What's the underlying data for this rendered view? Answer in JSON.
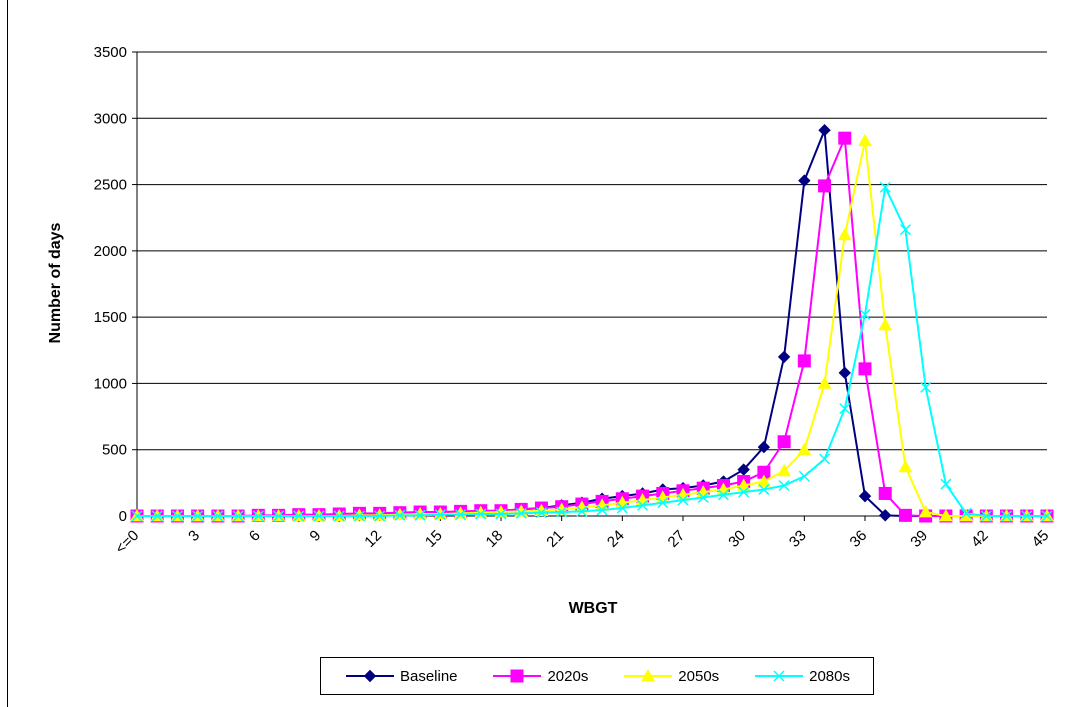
{
  "chart_data": {
    "type": "line",
    "xlabel": "WBGT",
    "ylabel": "Number of days",
    "ylim": [
      0,
      3500
    ],
    "yticks": [
      0,
      500,
      1000,
      1500,
      2000,
      2500,
      3000,
      3500
    ],
    "grid": "horizontal",
    "legend_position": "bottom",
    "x": [
      "<=0",
      "1",
      "2",
      "3",
      "4",
      "5",
      "6",
      "7",
      "8",
      "9",
      "10",
      "11",
      "12",
      "13",
      "14",
      "15",
      "16",
      "17",
      "18",
      "19",
      "20",
      "21",
      "22",
      "23",
      "24",
      "25",
      "26",
      "27",
      "28",
      "29",
      "30",
      "31",
      "32",
      "33",
      "34",
      "35",
      "36",
      "37",
      "38",
      "39",
      "40",
      "41",
      "42",
      "43",
      "44",
      "45"
    ],
    "xtick_labels": [
      "<=0",
      "3",
      "6",
      "9",
      "12",
      "15",
      "18",
      "21",
      "24",
      "27",
      "30",
      "33",
      "36",
      "39",
      "42",
      "45"
    ],
    "series": [
      {
        "name": "Baseline",
        "color": "#000080",
        "marker": "diamond",
        "values": [
          0,
          0,
          0,
          0,
          0,
          0,
          0,
          0,
          0,
          0,
          0,
          5,
          10,
          15,
          20,
          25,
          30,
          35,
          40,
          50,
          60,
          80,
          100,
          130,
          150,
          170,
          200,
          210,
          230,
          260,
          350,
          520,
          1200,
          2530,
          2910,
          1080,
          150,
          5,
          0,
          0,
          0,
          0,
          0,
          0,
          0,
          0
        ]
      },
      {
        "name": "2020s",
        "color": "#ff00ff",
        "marker": "square",
        "values": [
          0,
          0,
          0,
          0,
          0,
          0,
          5,
          5,
          10,
          10,
          15,
          20,
          20,
          25,
          30,
          30,
          35,
          40,
          40,
          50,
          60,
          70,
          90,
          110,
          130,
          150,
          170,
          190,
          210,
          230,
          260,
          330,
          560,
          1170,
          2490,
          2850,
          1110,
          170,
          5,
          0,
          0,
          0,
          0,
          0,
          0,
          0
        ]
      },
      {
        "name": "2050s",
        "color": "#ffff00",
        "marker": "triangle",
        "values": [
          0,
          0,
          0,
          0,
          0,
          0,
          0,
          0,
          0,
          0,
          0,
          5,
          5,
          10,
          15,
          15,
          20,
          25,
          30,
          35,
          40,
          50,
          65,
          80,
          100,
          120,
          140,
          160,
          180,
          200,
          230,
          260,
          340,
          500,
          1000,
          2120,
          2830,
          1440,
          370,
          30,
          0,
          0,
          0,
          0,
          0,
          0
        ]
      },
      {
        "name": "2080s",
        "color": "#00ffff",
        "marker": "x",
        "values": [
          0,
          0,
          0,
          0,
          0,
          0,
          0,
          0,
          0,
          0,
          0,
          0,
          0,
          5,
          5,
          10,
          10,
          15,
          15,
          20,
          25,
          30,
          35,
          45,
          60,
          80,
          100,
          120,
          140,
          160,
          180,
          200,
          230,
          300,
          430,
          810,
          1520,
          2480,
          2160,
          970,
          240,
          20,
          0,
          0,
          0,
          0
        ]
      }
    ]
  }
}
